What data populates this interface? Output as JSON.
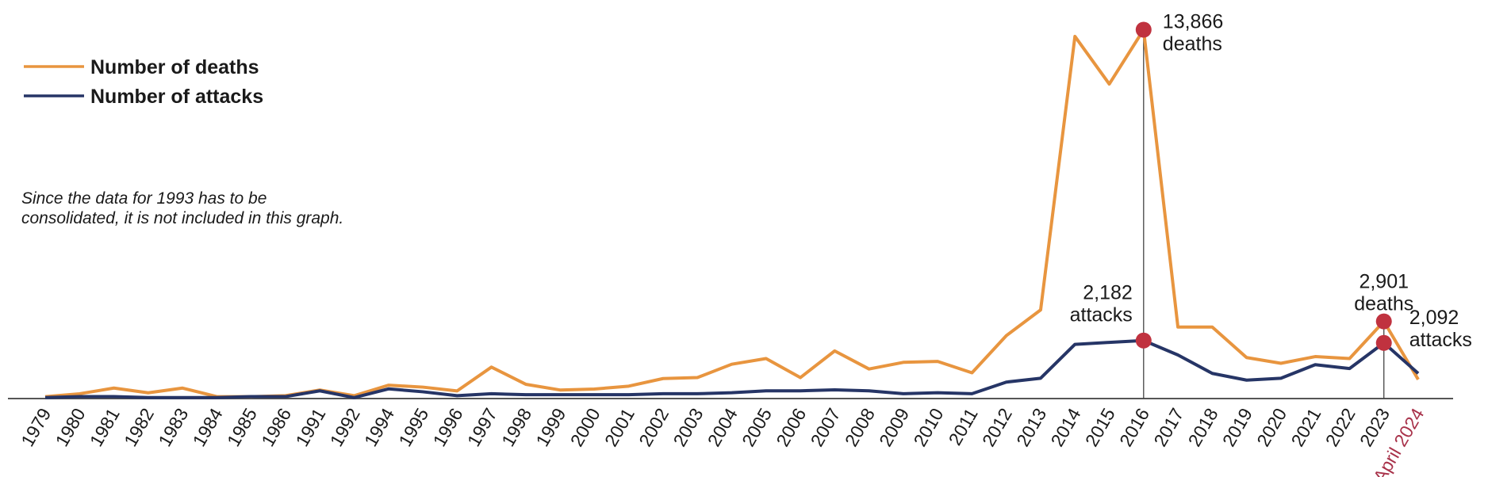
{
  "chart_data": {
    "type": "line",
    "note": [
      "Since the data for 1993 has to be",
      "consolidated, it is not included in this graph."
    ],
    "categories": [
      "1979",
      "1980",
      "1981",
      "1982",
      "1983",
      "1984",
      "1985",
      "1986",
      "1991",
      "1992",
      "1994",
      "1995",
      "1996",
      "1997",
      "1998",
      "1999",
      "2000",
      "2001",
      "2002",
      "2003",
      "2004",
      "2005",
      "2006",
      "2007",
      "2008",
      "2009",
      "2010",
      "2011",
      "2012",
      "2013",
      "2014",
      "2015",
      "2016",
      "2017",
      "2018",
      "2019",
      "2020",
      "2021",
      "2022",
      "2023",
      "April 2024"
    ],
    "highlight_category_color": "#a8324a",
    "highlight_categories": [
      "April 2024"
    ],
    "ylim": [
      0,
      14000
    ],
    "marker_color": "#c0323f",
    "series": [
      {
        "name": "Number of deaths",
        "color": "#e8953f",
        "values": [
          72,
          180,
          394,
          215,
          394,
          72,
          72,
          107,
          322,
          107,
          502,
          430,
          287,
          1182,
          537,
          322,
          358,
          466,
          752,
          788,
          1290,
          1505,
          788,
          1791,
          1111,
          1362,
          1397,
          967,
          2365,
          3332,
          13615,
          11824,
          13866,
          2687,
          2687,
          1541,
          1326,
          1577,
          1505,
          2901,
          717
        ],
        "value_labels": [
          null,
          null,
          null,
          null,
          null,
          null,
          null,
          null,
          null,
          null,
          null,
          null,
          null,
          null,
          null,
          null,
          null,
          null,
          null,
          null,
          null,
          null,
          null,
          null,
          null,
          null,
          null,
          null,
          null,
          null,
          null,
          null,
          [
            "13,866",
            "deaths"
          ],
          null,
          null,
          null,
          null,
          null,
          null,
          [
            "2,901",
            "deaths"
          ],
          null
        ]
      },
      {
        "name": "Number of attacks",
        "color": "#263566",
        "values": [
          36,
          73,
          73,
          36,
          36,
          36,
          73,
          73,
          291,
          36,
          364,
          255,
          109,
          182,
          146,
          146,
          146,
          146,
          182,
          182,
          218,
          291,
          291,
          328,
          291,
          182,
          218,
          182,
          619,
          764,
          2038,
          2111,
          2182,
          1638,
          946,
          692,
          764,
          1274,
          1128,
          2092,
          946
        ],
        "value_labels": [
          null,
          null,
          null,
          null,
          null,
          null,
          null,
          null,
          null,
          null,
          null,
          null,
          null,
          null,
          null,
          null,
          null,
          null,
          null,
          null,
          null,
          null,
          null,
          null,
          null,
          null,
          null,
          null,
          null,
          null,
          null,
          null,
          [
            "2,182",
            "attacks"
          ],
          null,
          null,
          null,
          null,
          null,
          null,
          [
            "2,092",
            "attacks"
          ],
          null
        ]
      }
    ]
  }
}
